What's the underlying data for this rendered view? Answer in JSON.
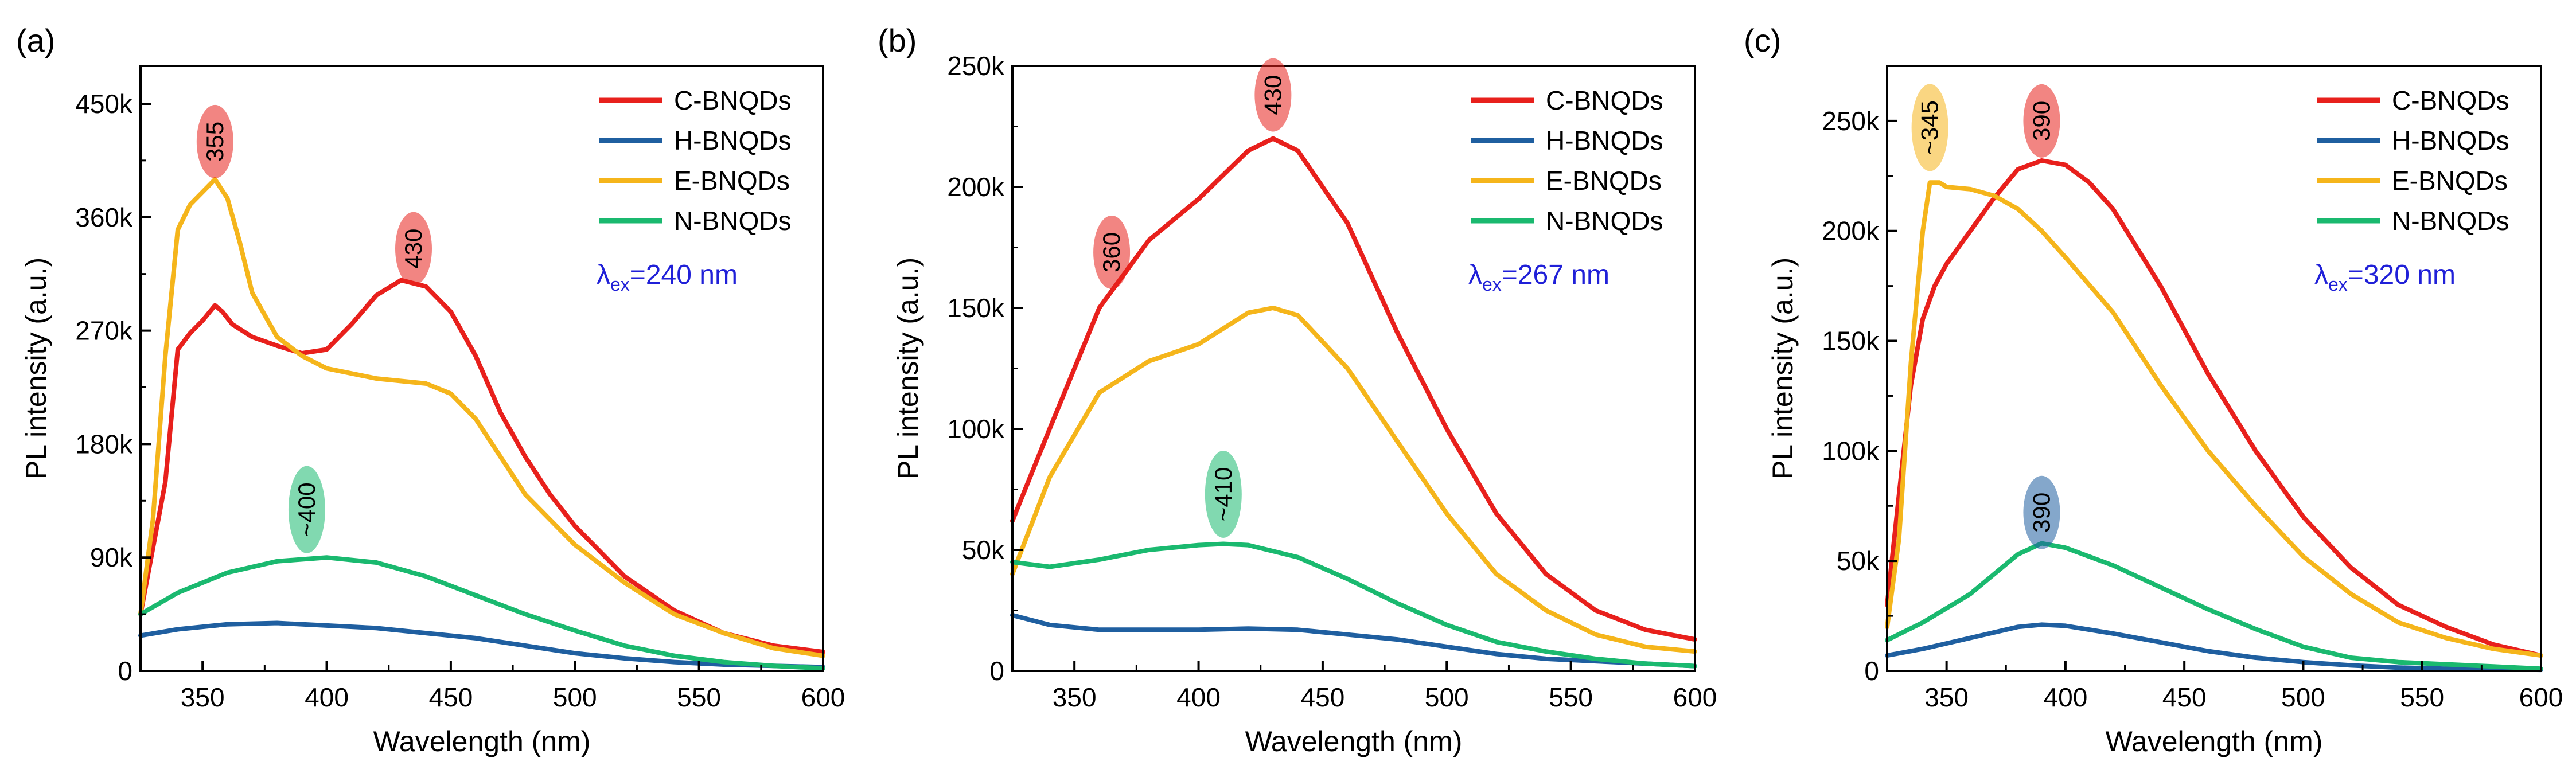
{
  "chart_data": [
    {
      "type": "line",
      "panel_label": "(a)",
      "xlabel": "Wavelength (nm)",
      "ylabel": "PL intensity (a.u.)",
      "xlim": [
        325,
        600
      ],
      "ylim": [
        0,
        480000
      ],
      "x_ticks": [
        350,
        400,
        450,
        500,
        550,
        600
      ],
      "x_tick_labels": [
        "350",
        "400",
        "450",
        "500",
        "550",
        "600"
      ],
      "y_ticks": [
        0,
        90000,
        180000,
        270000,
        360000,
        450000
      ],
      "y_tick_labels": [
        "0",
        "90k",
        "180k",
        "270k",
        "360k",
        "450k"
      ],
      "legend_position": "top-right",
      "excitation_label": {
        "prefix": "λ",
        "sub": "ex",
        "value": "=240 nm"
      },
      "series": [
        {
          "name": "C-BNQDs",
          "color": "#e8201c",
          "x": [
            325,
            335,
            340,
            345,
            350,
            355,
            358,
            362,
            370,
            380,
            390,
            400,
            410,
            420,
            430,
            440,
            450,
            460,
            470,
            480,
            490,
            500,
            520,
            540,
            560,
            580,
            600
          ],
          "values": [
            45000,
            150000,
            255000,
            268000,
            278000,
            290000,
            285000,
            275000,
            265000,
            258000,
            252000,
            255000,
            275000,
            298000,
            310000,
            305000,
            285000,
            250000,
            205000,
            170000,
            140000,
            115000,
            75000,
            48000,
            30000,
            20000,
            15000
          ]
        },
        {
          "name": "H-BNQDs",
          "color": "#1f5fa0",
          "x": [
            325,
            340,
            360,
            380,
            400,
            420,
            440,
            460,
            480,
            500,
            520,
            540,
            560,
            580,
            600
          ],
          "values": [
            28000,
            33000,
            37000,
            38000,
            36000,
            34000,
            30000,
            26000,
            20000,
            14000,
            10000,
            7000,
            5000,
            4000,
            3000
          ]
        },
        {
          "name": "E-BNQDs",
          "color": "#f5b51b",
          "x": [
            325,
            330,
            335,
            340,
            345,
            350,
            355,
            360,
            365,
            370,
            380,
            390,
            400,
            420,
            440,
            450,
            460,
            470,
            480,
            500,
            520,
            540,
            560,
            580,
            600
          ],
          "values": [
            45000,
            120000,
            250000,
            350000,
            370000,
            380000,
            390000,
            375000,
            340000,
            300000,
            265000,
            250000,
            240000,
            232000,
            228000,
            220000,
            200000,
            170000,
            140000,
            100000,
            70000,
            45000,
            30000,
            18000,
            12000
          ]
        },
        {
          "name": "N-BNQDs",
          "color": "#1ab96f",
          "x": [
            325,
            340,
            360,
            380,
            400,
            420,
            440,
            460,
            480,
            500,
            520,
            540,
            560,
            580,
            600
          ],
          "values": [
            45000,
            62000,
            78000,
            87000,
            90000,
            86000,
            75000,
            60000,
            45000,
            32000,
            20000,
            12000,
            7000,
            4000,
            2000
          ]
        }
      ],
      "peak_labels": [
        {
          "text": "355",
          "x": 355,
          "y": 420000,
          "color": "#e8201c"
        },
        {
          "text": "430",
          "x": 435,
          "y": 335000,
          "color": "#e8201c"
        },
        {
          "text": "~400",
          "x": 392,
          "y": 128000,
          "color": "#1ab96f"
        }
      ]
    },
    {
      "type": "line",
      "panel_label": "(b)",
      "xlabel": "Wavelength (nm)",
      "ylabel": "PL intensity (a.u.)",
      "xlim": [
        325,
        600
      ],
      "ylim": [
        0,
        250000
      ],
      "x_ticks": [
        350,
        400,
        450,
        500,
        550,
        600
      ],
      "x_tick_labels": [
        "350",
        "400",
        "450",
        "500",
        "550",
        "600"
      ],
      "y_ticks": [
        0,
        50000,
        100000,
        150000,
        200000,
        250000
      ],
      "y_tick_labels": [
        "0",
        "50k",
        "100k",
        "150k",
        "200k",
        "250k"
      ],
      "legend_position": "top-right",
      "excitation_label": {
        "prefix": "λ",
        "sub": "ex",
        "value": "=267 nm"
      },
      "series": [
        {
          "name": "C-BNQDs",
          "color": "#e8201c",
          "x": [
            325,
            340,
            360,
            380,
            400,
            420,
            430,
            440,
            460,
            480,
            500,
            520,
            540,
            560,
            580,
            600
          ],
          "values": [
            62000,
            100000,
            150000,
            178000,
            195000,
            215000,
            220000,
            215000,
            185000,
            140000,
            100000,
            65000,
            40000,
            25000,
            17000,
            13000
          ]
        },
        {
          "name": "H-BNQDs",
          "color": "#1f5fa0",
          "x": [
            325,
            340,
            360,
            380,
            400,
            420,
            440,
            460,
            480,
            500,
            520,
            540,
            560,
            580,
            600
          ],
          "values": [
            23000,
            19000,
            17000,
            17000,
            17000,
            17500,
            17000,
            15000,
            13000,
            10000,
            7000,
            5000,
            4000,
            3000,
            2000
          ]
        },
        {
          "name": "E-BNQDs",
          "color": "#f5b51b",
          "x": [
            325,
            340,
            360,
            380,
            400,
            420,
            430,
            440,
            460,
            480,
            500,
            520,
            540,
            560,
            580,
            600
          ],
          "values": [
            40000,
            80000,
            115000,
            128000,
            135000,
            148000,
            150000,
            147000,
            125000,
            95000,
            65000,
            40000,
            25000,
            15000,
            10000,
            8000
          ]
        },
        {
          "name": "N-BNQDs",
          "color": "#1ab96f",
          "x": [
            325,
            340,
            360,
            380,
            400,
            410,
            420,
            440,
            460,
            480,
            500,
            520,
            540,
            560,
            580,
            600
          ],
          "values": [
            45000,
            43000,
            46000,
            50000,
            52000,
            52500,
            52000,
            47000,
            38000,
            28000,
            19000,
            12000,
            8000,
            5000,
            3000,
            2000
          ]
        }
      ],
      "peak_labels": [
        {
          "text": "430",
          "x": 430,
          "y": 238000,
          "color": "#e8201c"
        },
        {
          "text": "360",
          "x": 365,
          "y": 173000,
          "color": "#e8201c"
        },
        {
          "text": "~410",
          "x": 410,
          "y": 73000,
          "color": "#1ab96f"
        }
      ]
    },
    {
      "type": "line",
      "panel_label": "(c)",
      "xlabel": "Wavelength (nm)",
      "ylabel": "PL intensity (a.u.)",
      "xlim": [
        325,
        600
      ],
      "ylim": [
        0,
        275000
      ],
      "x_ticks": [
        350,
        400,
        450,
        500,
        550,
        600
      ],
      "x_tick_labels": [
        "350",
        "400",
        "450",
        "500",
        "550",
        "600"
      ],
      "y_ticks": [
        0,
        50000,
        100000,
        150000,
        200000,
        250000
      ],
      "y_tick_labels": [
        "0",
        "50k",
        "100k",
        "150k",
        "200k",
        "250k"
      ],
      "legend_position": "top-right",
      "excitation_label": {
        "prefix": "λ",
        "sub": "ex",
        "value": "=320 nm"
      },
      "series": [
        {
          "name": "C-BNQDs",
          "color": "#e8201c",
          "x": [
            325,
            330,
            335,
            340,
            345,
            350,
            360,
            370,
            380,
            390,
            400,
            410,
            420,
            440,
            460,
            480,
            500,
            520,
            540,
            560,
            580,
            600
          ],
          "values": [
            30000,
            80000,
            130000,
            160000,
            175000,
            185000,
            200000,
            215000,
            228000,
            232000,
            230000,
            222000,
            210000,
            175000,
            135000,
            100000,
            70000,
            47000,
            30000,
            20000,
            12000,
            7000
          ]
        },
        {
          "name": "H-BNQDs",
          "color": "#1f5fa0",
          "x": [
            325,
            340,
            360,
            380,
            390,
            400,
            420,
            440,
            460,
            480,
            500,
            520,
            540,
            560,
            580,
            600
          ],
          "values": [
            7000,
            10000,
            15000,
            20000,
            21000,
            20500,
            17000,
            13000,
            9000,
            6000,
            4000,
            2500,
            1500,
            1000,
            800,
            500
          ]
        },
        {
          "name": "E-BNQDs",
          "color": "#f5b51b",
          "x": [
            325,
            330,
            335,
            340,
            343,
            347,
            350,
            360,
            370,
            380,
            390,
            400,
            420,
            440,
            460,
            480,
            500,
            520,
            540,
            560,
            580,
            600
          ],
          "values": [
            20000,
            60000,
            140000,
            200000,
            222000,
            222000,
            220000,
            219000,
            216000,
            210000,
            200000,
            188000,
            163000,
            130000,
            100000,
            75000,
            52000,
            35000,
            22000,
            15000,
            10000,
            7000
          ]
        },
        {
          "name": "N-BNQDs",
          "color": "#1ab96f",
          "x": [
            325,
            340,
            360,
            380,
            390,
            400,
            420,
            440,
            460,
            480,
            500,
            520,
            540,
            560,
            580,
            600
          ],
          "values": [
            14000,
            22000,
            35000,
            53000,
            58000,
            56000,
            48000,
            38000,
            28000,
            19000,
            11000,
            6000,
            4000,
            3000,
            2000,
            1000
          ]
        }
      ],
      "peak_labels": [
        {
          "text": "~345",
          "x": 343,
          "y": 247000,
          "color": "#f5b51b"
        },
        {
          "text": "390",
          "x": 390,
          "y": 250000,
          "color": "#e8201c"
        },
        {
          "text": "390",
          "x": 390,
          "y": 72000,
          "color": "#1f5fa0"
        }
      ]
    }
  ]
}
